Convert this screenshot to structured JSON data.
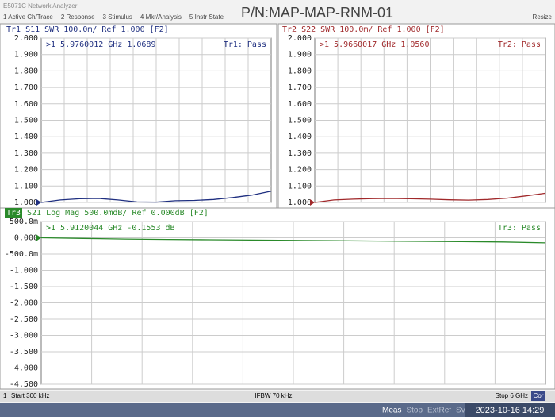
{
  "window_title": "E5071C Network Analyzer",
  "menu": [
    "1 Active Ch/Trace",
    "2 Response",
    "3 Stimulus",
    "4 Mkr/Analysis",
    "5 Instr State"
  ],
  "part_number": "P/N:MAP-MAP-RNM-01",
  "resize": "Resize",
  "chart_data": [
    {
      "type": "line",
      "title": "Tr1 S11 SWR 100.0m/ Ref 1.000 [F2]",
      "marker_readout": ">1  5.9760012 GHz  1.0689",
      "status": "Tr1: Pass",
      "x": [
        0.0003,
        0.5,
        1,
        1.5,
        2,
        2.5,
        3,
        3.5,
        4,
        4.5,
        5,
        5.5,
        6
      ],
      "series": [
        {
          "color": "#1f2f80",
          "values": [
            1.0,
            1.015,
            1.022,
            1.024,
            1.015,
            1.003,
            1.002,
            1.01,
            1.012,
            1.018,
            1.03,
            1.045,
            1.069
          ]
        }
      ],
      "xlim": [
        0.0003,
        6
      ],
      "ylim": [
        1,
        2
      ],
      "yticks": [
        {
          "value": 2,
          "label": "2.000"
        },
        {
          "value": 1.9,
          "label": "1.900"
        },
        {
          "value": 1.8,
          "label": "1.800"
        },
        {
          "value": 1.7,
          "label": "1.700"
        },
        {
          "value": 1.6,
          "label": "1.600"
        },
        {
          "value": 1.5,
          "label": "1.500"
        },
        {
          "value": 1.4,
          "label": "1.400"
        },
        {
          "value": 1.3,
          "label": "1.300"
        },
        {
          "value": 1.2,
          "label": "1.200"
        },
        {
          "value": 1.1,
          "label": "1.100"
        },
        {
          "value": 1,
          "label": "1.000"
        }
      ],
      "grid": true
    },
    {
      "type": "line",
      "title": "Tr2 S22 SWR 100.0m/ Ref 1.000 [F2]",
      "marker_readout": ">1  5.9660017 GHz  1.0560",
      "status": "Tr2: Pass",
      "x": [
        0.0003,
        0.5,
        1,
        1.5,
        2,
        2.5,
        3,
        3.5,
        4,
        4.5,
        5,
        5.5,
        6
      ],
      "series": [
        {
          "color": "#a0282a",
          "values": [
            1.0,
            1.015,
            1.02,
            1.023,
            1.024,
            1.022,
            1.02,
            1.016,
            1.014,
            1.018,
            1.026,
            1.04,
            1.056
          ]
        }
      ],
      "xlim": [
        0.0003,
        6
      ],
      "ylim": [
        1,
        2
      ],
      "yticks": [
        {
          "value": 2,
          "label": "2.000"
        },
        {
          "value": 1.9,
          "label": "1.900"
        },
        {
          "value": 1.8,
          "label": "1.800"
        },
        {
          "value": 1.7,
          "label": "1.700"
        },
        {
          "value": 1.6,
          "label": "1.600"
        },
        {
          "value": 1.5,
          "label": "1.500"
        },
        {
          "value": 1.4,
          "label": "1.400"
        },
        {
          "value": 1.3,
          "label": "1.300"
        },
        {
          "value": 1.2,
          "label": "1.200"
        },
        {
          "value": 1.1,
          "label": "1.100"
        },
        {
          "value": 1,
          "label": "1.000"
        }
      ],
      "grid": true
    },
    {
      "type": "line",
      "trace_label": "Tr3",
      "title": "S21 Log Mag 500.0mdB/ Ref 0.000dB [F2]",
      "marker_readout": ">1  5.9120044 GHz -0.1553 dB",
      "status": "Tr3: Pass",
      "x": [
        0.0003,
        0.5,
        1,
        1.5,
        2,
        2.5,
        3,
        3.5,
        4,
        4.5,
        5,
        5.5,
        6
      ],
      "series": [
        {
          "color": "#2a8a2a",
          "values": [
            0.0,
            -0.02,
            -0.04,
            -0.05,
            -0.06,
            -0.07,
            -0.08,
            -0.09,
            -0.1,
            -0.11,
            -0.12,
            -0.13,
            -0.155
          ]
        }
      ],
      "xlim": [
        0.0003,
        6
      ],
      "ylim": [
        -4.5,
        0.5
      ],
      "yticks": [
        {
          "value": 0.5,
          "label": "500.0m"
        },
        {
          "value": 0,
          "label": "0.000"
        },
        {
          "value": -0.5,
          "label": "-500.0m"
        },
        {
          "value": -1,
          "label": "-1.000"
        },
        {
          "value": -1.5,
          "label": "-1.500"
        },
        {
          "value": -2,
          "label": "-2.000"
        },
        {
          "value": -2.5,
          "label": "-2.500"
        },
        {
          "value": -3,
          "label": "-3.000"
        },
        {
          "value": -3.5,
          "label": "-3.500"
        },
        {
          "value": -4,
          "label": "-4.000"
        },
        {
          "value": -4.5,
          "label": "-4.500"
        }
      ],
      "grid": true
    }
  ],
  "status_bar": {
    "channel": "1",
    "start": "Start 300 kHz",
    "ifbw": "IFBW 70 kHz",
    "stop": "Stop 6 GHz",
    "cor": "Cor"
  },
  "taskbar": [
    "Meas",
    "Stop",
    "ExtRef",
    "Svc"
  ],
  "datetime": "2023-10-16 14:29"
}
